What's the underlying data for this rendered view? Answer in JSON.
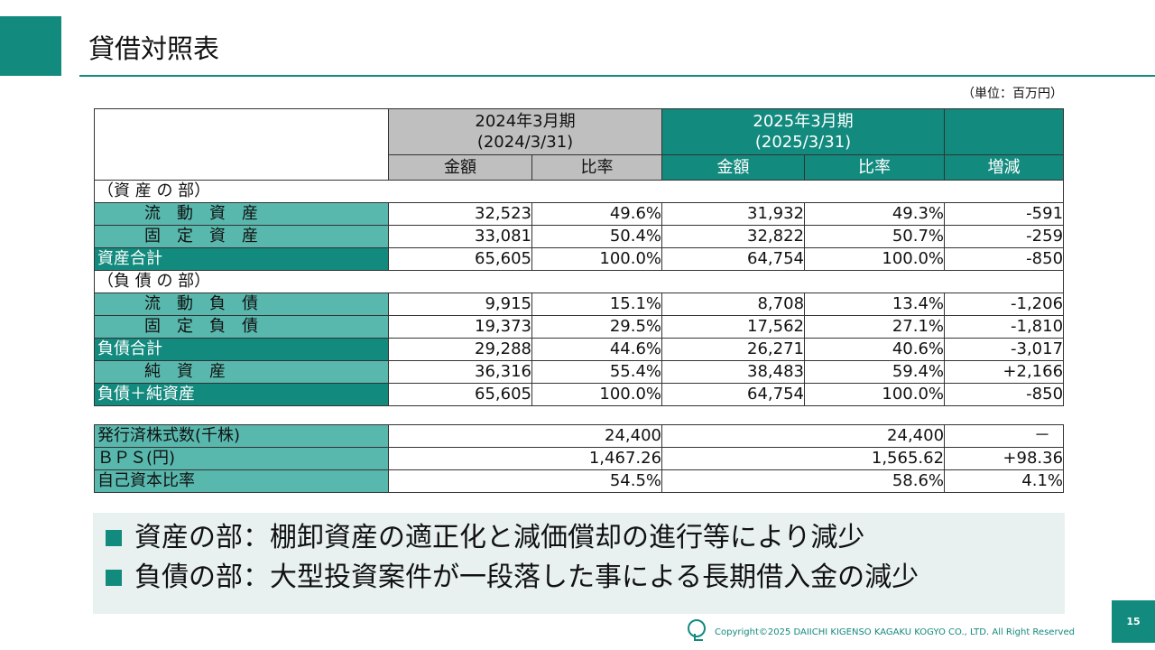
{
  "header": {
    "title": "貸借対照表"
  },
  "unit": "（単位：百万円）",
  "table": {
    "prev_period": {
      "line1": "2024年3月期",
      "line2": "(2024/3/31)"
    },
    "cur_period": {
      "line1": "2025年3月期",
      "line2": "(2025/3/31)"
    },
    "col_amount": "金額",
    "col_ratio": "比率",
    "col_change": "増減",
    "sections": {
      "assets": "（資 産 の 部）",
      "liabilities": "（負 債 の 部）"
    },
    "rows": [
      {
        "label": "流　動　資　産",
        "prev_amount": "32,523",
        "prev_ratio": "49.6%",
        "cur_amount": "31,932",
        "cur_ratio": "49.3%",
        "change": "-591"
      },
      {
        "label": "固　定　資　産",
        "prev_amount": "33,081",
        "prev_ratio": "50.4%",
        "cur_amount": "32,822",
        "cur_ratio": "50.7%",
        "change": "-259"
      },
      {
        "label": "資産合計",
        "prev_amount": "65,605",
        "prev_ratio": "100.0%",
        "cur_amount": "64,754",
        "cur_ratio": "100.0%",
        "change": "-850"
      },
      {
        "label": "流　動　負　債",
        "prev_amount": "9,915",
        "prev_ratio": "15.1%",
        "cur_amount": "8,708",
        "cur_ratio": "13.4%",
        "change": "-1,206"
      },
      {
        "label": "固　定　負　債",
        "prev_amount": "19,373",
        "prev_ratio": "29.5%",
        "cur_amount": "17,562",
        "cur_ratio": "27.1%",
        "change": "-1,810"
      },
      {
        "label": "負債合計",
        "prev_amount": "29,288",
        "prev_ratio": "44.6%",
        "cur_amount": "26,271",
        "cur_ratio": "40.6%",
        "change": "-3,017"
      },
      {
        "label": "純　資　産",
        "prev_amount": "36,316",
        "prev_ratio": "55.4%",
        "cur_amount": "38,483",
        "cur_ratio": "59.4%",
        "change": "+2,166"
      },
      {
        "label": "負債＋純資産",
        "prev_amount": "65,605",
        "prev_ratio": "100.0%",
        "cur_amount": "64,754",
        "cur_ratio": "100.0%",
        "change": "-850"
      }
    ],
    "stock_rows": [
      {
        "label": "発行済株式数(千株)",
        "prev": "24,400",
        "cur": "24,400",
        "change": "－"
      },
      {
        "label": "ＢＰＳ(円)",
        "prev": "1,467.26",
        "cur": "1,565.62",
        "change": "+98.36"
      },
      {
        "label": "自己資本比率",
        "prev": "54.5%",
        "cur": "58.6%",
        "change": "4.1%"
      }
    ]
  },
  "summary": [
    "資産の部：棚卸資産の適正化と減価償却の進行等により減少",
    "負債の部：大型投資案件が一段落した事による長期借入金の減少"
  ],
  "footer": {
    "copyright": "Copyright©2025 DAIICHI KIGENSO KAGAKU KOGYO CO., LTD. All Right Reserved",
    "page_number": "15"
  },
  "colors": {
    "accent": "#128a7e",
    "light_accent": "#59b8ad",
    "gray_header": "#bfbfbf",
    "summary_bg": "#e8f1f0"
  }
}
